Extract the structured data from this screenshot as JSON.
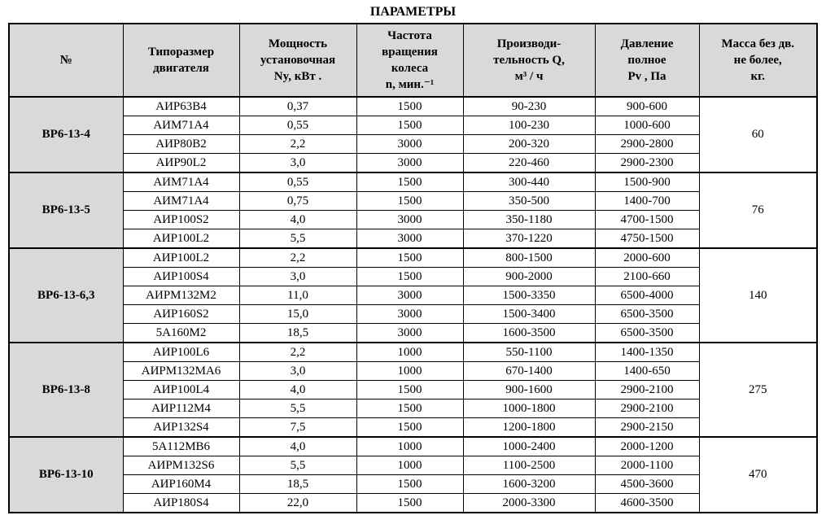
{
  "title": "ПАРАМЕТРЫ",
  "colors": {
    "header_bg": "#d9d9d9",
    "cell_bg": "#ffffff",
    "border": "#000000",
    "text": "#000000"
  },
  "table": {
    "columns": [
      "№",
      "Типоразмер\nдвигателя",
      "Мощность\nустановочная\nNy, кВт .",
      "Частота\nвращения\nколеса\nn, мин.⁻¹",
      "Производи-\nтельность Q,\nм³ / ч",
      "Давление\nполное\nPv , Па",
      "Масса без дв.\nне более,\nкг."
    ],
    "groups": [
      {
        "name": "ВР6-13-4",
        "mass": "60",
        "rows": [
          [
            "АИР63В4",
            "0,37",
            "1500",
            "90-230",
            "900-600"
          ],
          [
            "АИМ71А4",
            "0,55",
            "1500",
            "100-230",
            "1000-600"
          ],
          [
            "АИР80В2",
            "2,2",
            "3000",
            "200-320",
            "2900-2800"
          ],
          [
            "АИР90L2",
            "3,0",
            "3000",
            "220-460",
            "2900-2300"
          ]
        ]
      },
      {
        "name": "ВР6-13-5",
        "mass": "76",
        "rows": [
          [
            "АИМ71А4",
            "0,55",
            "1500",
            "300-440",
            "1500-900"
          ],
          [
            "АИМ71А4",
            "0,75",
            "1500",
            "350-500",
            "1400-700"
          ],
          [
            "АИР100S2",
            "4,0",
            "3000",
            "350-1180",
            "4700-1500"
          ],
          [
            "АИР100L2",
            "5,5",
            "3000",
            "370-1220",
            "4750-1500"
          ]
        ]
      },
      {
        "name": "ВР6-13-6,3",
        "mass": "140",
        "rows": [
          [
            "АИР100L2",
            "2,2",
            "1500",
            "800-1500",
            "2000-600"
          ],
          [
            "АИР100S4",
            "3,0",
            "1500",
            "900-2000",
            "2100-660"
          ],
          [
            "АИРМ132М2",
            "11,0",
            "3000",
            "1500-3350",
            "6500-4000"
          ],
          [
            "АИР160S2",
            "15,0",
            "3000",
            "1500-3400",
            "6500-3500"
          ],
          [
            "5А160М2",
            "18,5",
            "3000",
            "1600-3500",
            "6500-3500"
          ]
        ]
      },
      {
        "name": "ВР6-13-8",
        "mass": "275",
        "rows": [
          [
            "АИР100L6",
            "2,2",
            "1000",
            "550-1100",
            "1400-1350"
          ],
          [
            "АИРМ132МА6",
            "3,0",
            "1000",
            "670-1400",
            "1400-650"
          ],
          [
            "АИР100L4",
            "4,0",
            "1500",
            "900-1600",
            "2900-2100"
          ],
          [
            "АИР112М4",
            "5,5",
            "1500",
            "1000-1800",
            "2900-2100"
          ],
          [
            "АИР132S4",
            "7,5",
            "1500",
            "1200-1800",
            "2900-2150"
          ]
        ]
      },
      {
        "name": "ВР6-13-10",
        "mass": "470",
        "rows": [
          [
            "5А112МВ6",
            "4,0",
            "1000",
            "1000-2400",
            "2000-1200"
          ],
          [
            "АИРМ132S6",
            "5,5",
            "1000",
            "1100-2500",
            "2000-1100"
          ],
          [
            "АИР160М4",
            "18,5",
            "1500",
            "1600-3200",
            "4500-3600"
          ],
          [
            "АИР180S4",
            "22,0",
            "1500",
            "2000-3300",
            "4600-3500"
          ]
        ]
      }
    ]
  }
}
